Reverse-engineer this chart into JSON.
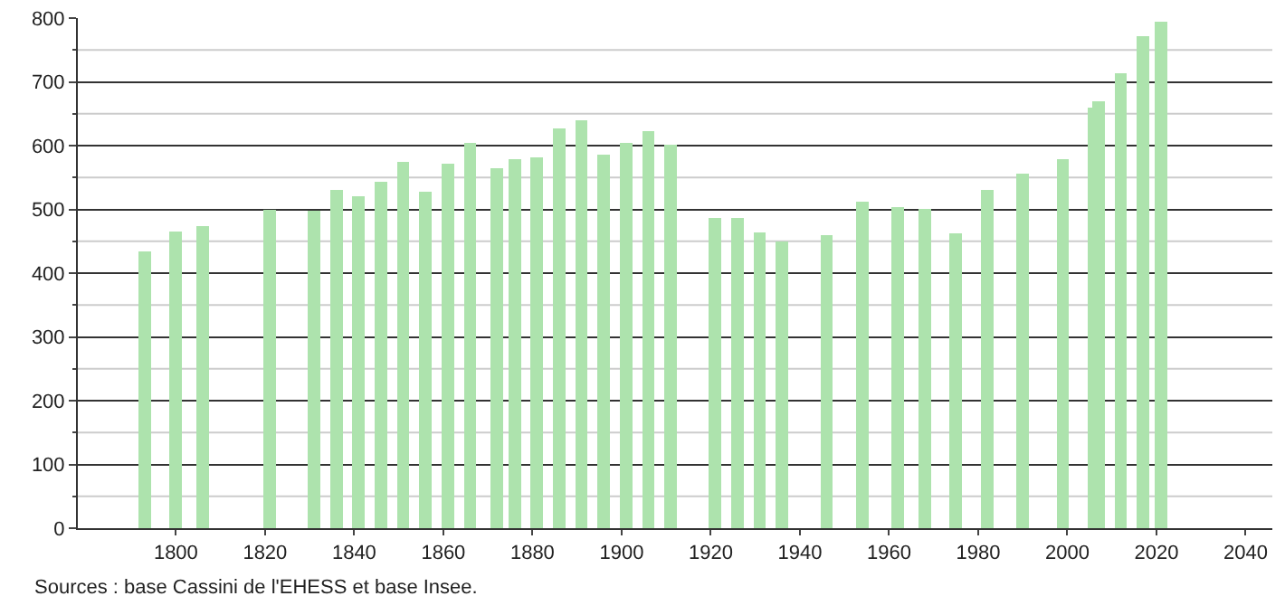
{
  "chart_data": {
    "type": "bar",
    "x": [
      1793,
      1800,
      1806,
      1821,
      1831,
      1836,
      1841,
      1846,
      1851,
      1856,
      1861,
      1866,
      1872,
      1876,
      1881,
      1886,
      1891,
      1896,
      1901,
      1906,
      1911,
      1921,
      1926,
      1931,
      1936,
      1946,
      1954,
      1962,
      1968,
      1975,
      1982,
      1990,
      1999,
      2006,
      2007,
      2012,
      2017,
      2021
    ],
    "values": [
      434,
      465,
      474,
      499,
      498,
      531,
      521,
      543,
      575,
      527,
      571,
      604,
      564,
      579,
      582,
      627,
      640,
      586,
      604,
      623,
      601,
      486,
      487,
      464,
      450,
      460,
      512,
      503,
      501,
      463,
      531,
      556,
      579,
      660,
      669,
      714,
      772,
      794
    ],
    "color": "#ade3ad",
    "xlim": [
      1778,
      2046
    ],
    "xticks": [
      1800,
      1820,
      1840,
      1860,
      1880,
      1900,
      1920,
      1940,
      1960,
      1980,
      2000,
      2020,
      2040
    ],
    "ylim": [
      0,
      800
    ],
    "yticks": [
      0,
      {
        "value": 50,
        "label": null
      },
      100,
      {
        "value": 150,
        "label": null
      },
      200,
      {
        "value": 250,
        "label": null
      },
      300,
      {
        "value": 350,
        "label": null
      },
      400,
      {
        "value": 450,
        "label": null
      },
      500,
      {
        "value": 550,
        "label": null
      },
      600,
      {
        "value": 650,
        "label": null
      },
      700,
      {
        "value": 750,
        "label": null
      },
      800
    ],
    "grid": "y",
    "annotations": [
      "Sources : base Cassini de l'EHESS et base Insee."
    ]
  }
}
